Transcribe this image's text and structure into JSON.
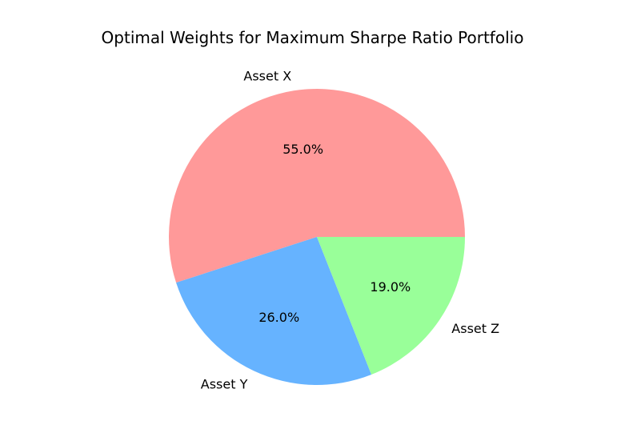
{
  "chart_data": {
    "type": "pie",
    "title": "Optimal Weights for Maximum Sharpe Ratio Portfolio",
    "labels": [
      "Asset X",
      "Asset Y",
      "Asset Z"
    ],
    "values": [
      55.0,
      26.0,
      19.0
    ],
    "value_labels": [
      "55.0%",
      "26.0%",
      "19.0%"
    ],
    "colors": [
      "#ff9999",
      "#66b3ff",
      "#99ff99"
    ],
    "start_angle_deg": 0,
    "direction": "counterclockwise"
  }
}
